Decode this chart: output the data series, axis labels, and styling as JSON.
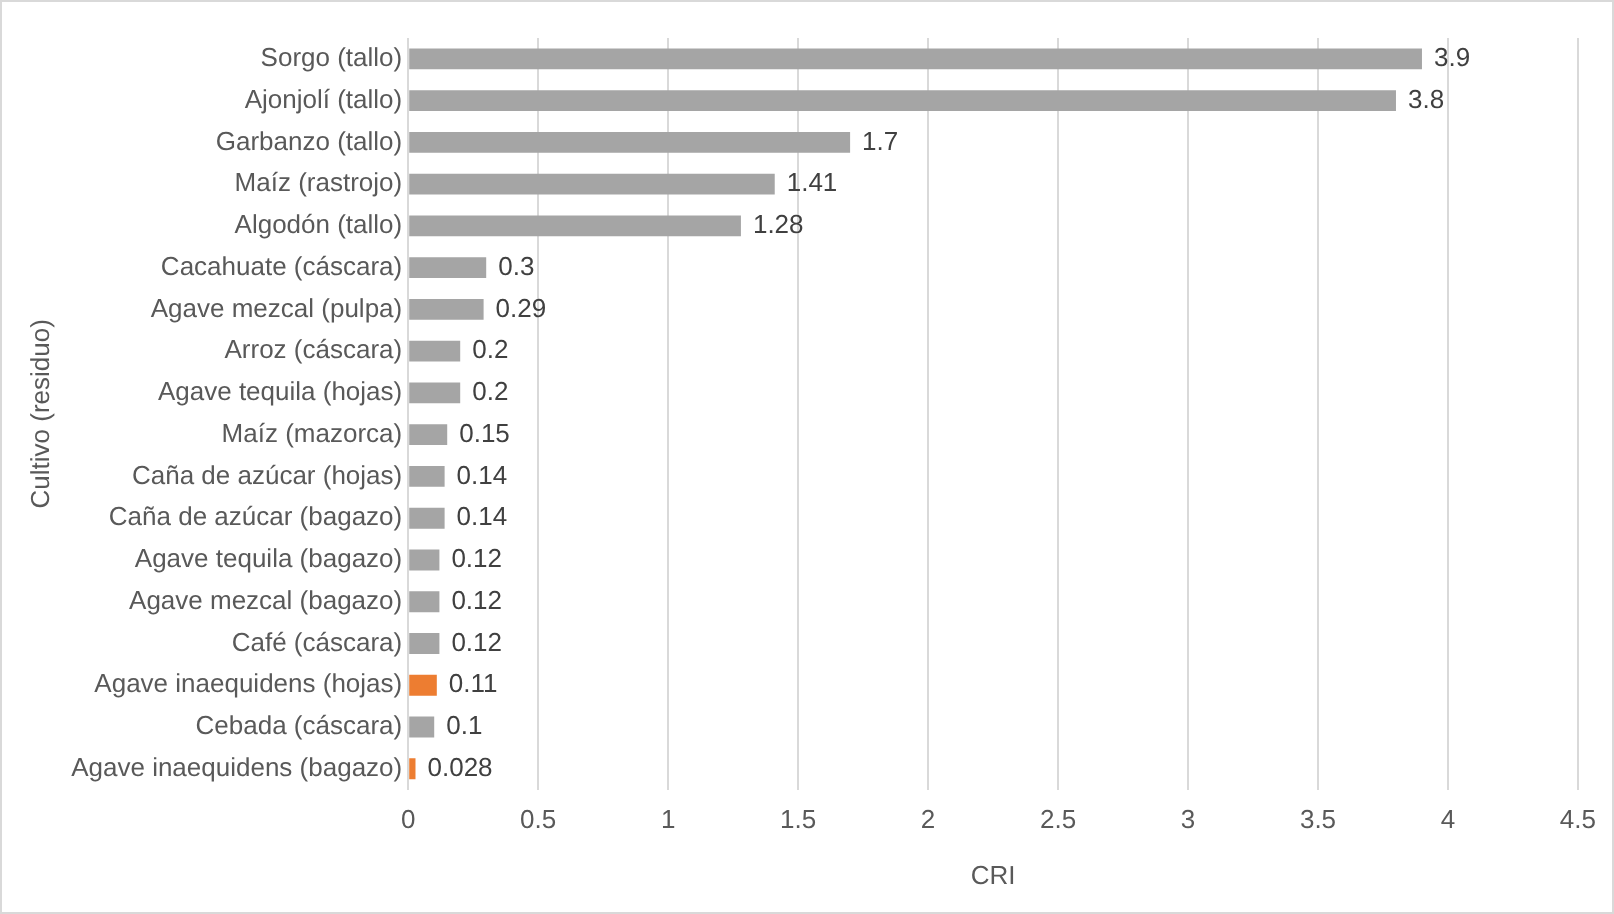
{
  "chart_data": {
    "type": "bar",
    "orientation": "horizontal",
    "xlabel": "CRI",
    "ylabel": "Cultivo (residuo)",
    "categories": [
      "Sorgo (tallo)",
      "Ajonjolí (tallo)",
      "Garbanzo (tallo)",
      "Maíz (rastrojo)",
      "Algodón (tallo)",
      "Cacahuate (cáscara)",
      "Agave mezcal (pulpa)",
      "Arroz (cáscara)",
      "Agave tequila (hojas)",
      "Maíz (mazorca)",
      "Caña de azúcar (hojas)",
      "Caña de azúcar (bagazo)",
      "Agave tequila (bagazo)",
      "Agave mezcal (bagazo)",
      "Café (cáscara)",
      "Agave inaequidens (hojas)",
      "Cebada (cáscara)",
      "Agave inaequidens (bagazo)"
    ],
    "values": [
      3.9,
      3.8,
      1.7,
      1.41,
      1.28,
      0.3,
      0.29,
      0.2,
      0.2,
      0.15,
      0.14,
      0.14,
      0.12,
      0.12,
      0.12,
      0.11,
      0.1,
      0.028
    ],
    "colors": [
      "#a5a5a5",
      "#a5a5a5",
      "#a5a5a5",
      "#a5a5a5",
      "#a5a5a5",
      "#a5a5a5",
      "#a5a5a5",
      "#a5a5a5",
      "#a5a5a5",
      "#a5a5a5",
      "#a5a5a5",
      "#a5a5a5",
      "#a5a5a5",
      "#a5a5a5",
      "#a5a5a5",
      "#ed7d31",
      "#a5a5a5",
      "#ed7d31"
    ],
    "xlim": [
      0,
      4.5
    ],
    "xticks": [
      0,
      0.5,
      1,
      1.5,
      2,
      2.5,
      3,
      3.5,
      4,
      4.5
    ],
    "grid": "x",
    "data_labels": true,
    "legend": false
  }
}
